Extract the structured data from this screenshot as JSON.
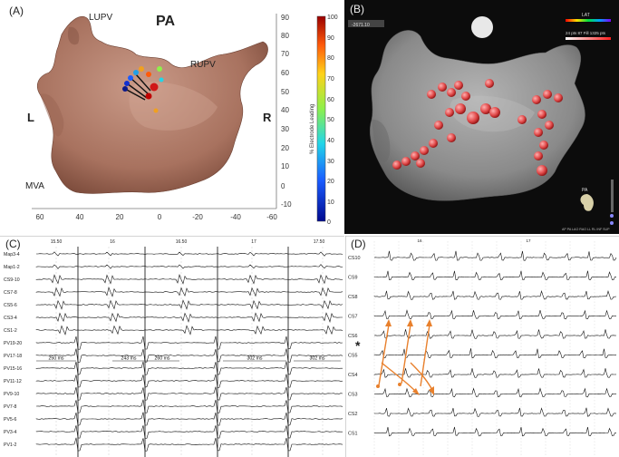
{
  "panelA": {
    "label": "(A)",
    "title": "PA",
    "lupv": "LUPV",
    "rupv": "RUPV",
    "left": "L",
    "right": "R",
    "mva": "MVA",
    "x_ticks": [
      "60",
      "40",
      "20",
      "0",
      "-20",
      "-40",
      "-60"
    ],
    "y_ticks": [
      "90",
      "80",
      "70",
      "60",
      "50",
      "40",
      "30",
      "20",
      "10",
      "0",
      "-10"
    ],
    "colorbar_ticks": [
      "100",
      "90",
      "80",
      "70",
      "60",
      "50",
      "40",
      "30",
      "20",
      "10",
      "0"
    ],
    "colorbar_label": "% Electrode Leading",
    "colors": {
      "surface": "#b07e6c",
      "surface_dark": "#8e5d4c"
    }
  },
  "panelB": {
    "label": "(B)",
    "header_text": "-2671.10",
    "legend_lat": "LAT",
    "legend_scale": "24 pts  87  Fill  1325 pts",
    "view_label": "PA",
    "view_bar": "AP  PA  LAO  RAO  LL  RL  INF  SUP",
    "colors": {
      "background": "#0c0c0c",
      "surface": "#8a8a8a",
      "tag": "#d94040"
    }
  },
  "panelC": {
    "label": "(C)",
    "time_marks": [
      "15.50",
      "16",
      "16.50",
      "17",
      "17.50"
    ],
    "channels": [
      "Map3-4",
      "Map1-2",
      "CS9-10",
      "CS7-8",
      "CS5-6",
      "CS3-4",
      "CS1-2",
      "PV19-20",
      "PV17-18",
      "PV15-16",
      "PV11-12",
      "PV9-10",
      "PV7-8",
      "PV5-6",
      "PV3-4",
      "PV1-2"
    ],
    "intervals": [
      "250 ms",
      "243 ms",
      "260 ms",
      "302 ms",
      "302 ms"
    ]
  },
  "panelD": {
    "label": "(D)",
    "time_marks": [
      "16",
      "17"
    ],
    "channels": [
      "CS10",
      "CS9",
      "CS8",
      "CS7",
      "CS6",
      "CS5",
      "CS4",
      "CS3",
      "CS2",
      "CS1"
    ],
    "star": "*",
    "colors": {
      "arrow": "#e8802c"
    }
  }
}
